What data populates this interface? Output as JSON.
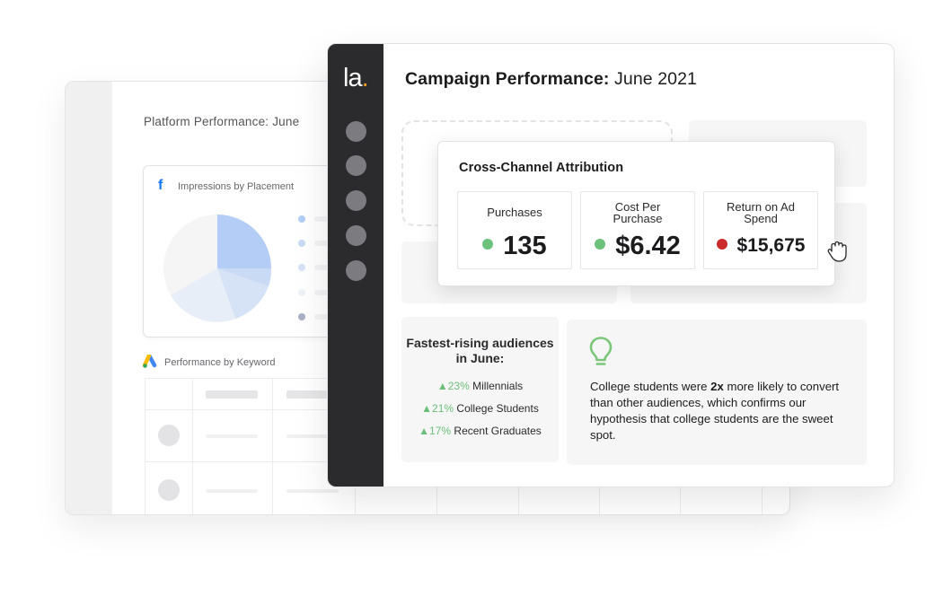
{
  "back_window": {
    "title": "Platform Performance: June",
    "placement_card": {
      "title": "Impressions by Placement",
      "icon": "facebook-icon",
      "pie_colors": [
        "#b4cdf6",
        "#c9daf5",
        "#dde6f6",
        "#eef1f7",
        "#f5f5f6"
      ]
    },
    "keyword_section": {
      "title": "Performance by Keyword",
      "icon": "google-ads-icon"
    }
  },
  "front_window": {
    "logo": {
      "text": "la",
      "dot": "."
    },
    "title": {
      "bold": "Campaign Performance:",
      "rest": " June 2021"
    },
    "attribution": {
      "title": "Cross-Channel Attribution",
      "metrics": [
        {
          "label": "Purchases",
          "value": "135",
          "status_color": "#6cc27a"
        },
        {
          "label": "Cost Per Purchase",
          "value": "$6.42",
          "status_color": "#6cc27a"
        },
        {
          "label": "Return on Ad Spend",
          "value": "$15,675",
          "status_color": "#cc2b2b"
        }
      ]
    },
    "audiences": {
      "title": "Fastest-rising audiences in June:",
      "items": [
        {
          "pct": "▲23%",
          "label": "Millennials"
        },
        {
          "pct": "▲21%",
          "label": "College Students"
        },
        {
          "pct": "▲17%",
          "label": "Recent Graduates"
        }
      ]
    },
    "insight": {
      "icon": "lightbulb-icon",
      "pre": "College students were ",
      "emphasis": "2x",
      "post": " more likely to convert than other audiences, which confirms our hypothesis that college students are the sweet spot."
    }
  },
  "colors": {
    "rail_dark": "#2b2b2e",
    "accent_orange": "#f59a23",
    "positive_green": "#6cc27a",
    "negative_red": "#cc2b2b",
    "bulb_green": "#7cc67a"
  }
}
